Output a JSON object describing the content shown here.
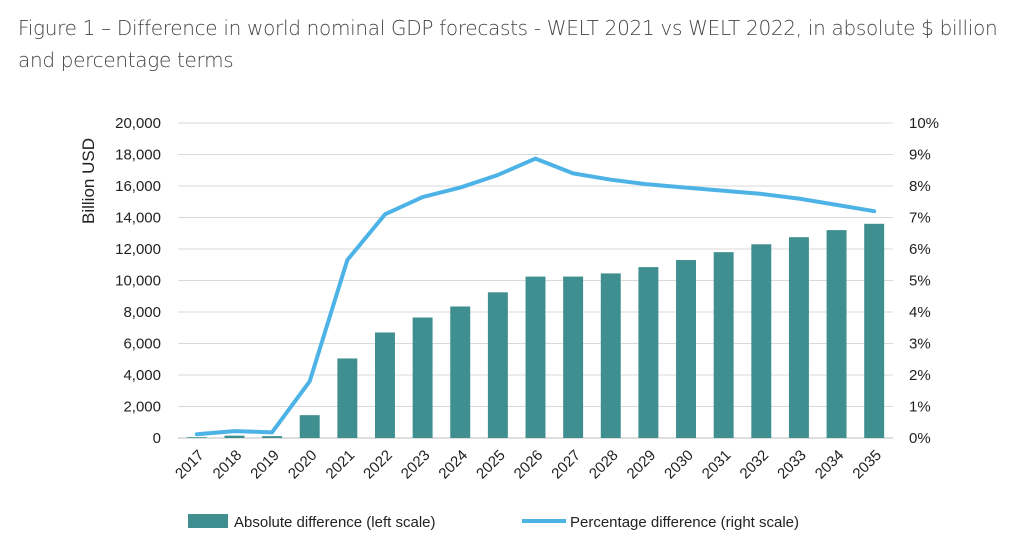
{
  "chart_data": {
    "type": "bar",
    "title": "Figure 1 – Difference in world nominal GDP forecasts -  WELT 2021 vs WELT 2022, in absolute $ billion and percentage terms",
    "ylabel": "Billion USD",
    "categories": [
      "2017",
      "2018",
      "2019",
      "2020",
      "2021",
      "2022",
      "2023",
      "2024",
      "2025",
      "2026",
      "2027",
      "2028",
      "2029",
      "2030",
      "2031",
      "2032",
      "2033",
      "2034",
      "2035"
    ],
    "ylim": [
      0,
      20000
    ],
    "y2lim": [
      0,
      10
    ],
    "y_ticks": [
      "0",
      "2,000",
      "4,000",
      "6,000",
      "8,000",
      "10,000",
      "12,000",
      "14,000",
      "16,000",
      "18,000",
      "20,000"
    ],
    "y2_ticks": [
      "0%",
      "1%",
      "2%",
      "3%",
      "4%",
      "5%",
      "6%",
      "7%",
      "8%",
      "9%",
      "10%"
    ],
    "grid": true,
    "legend_position": "bottom",
    "series": [
      {
        "name": "Absolute difference (left scale)",
        "type": "bar",
        "axis": "left",
        "color": "#3f8f91",
        "values": [
          50,
          150,
          120,
          1450,
          5050,
          6700,
          7650,
          8350,
          9250,
          10250,
          10250,
          10450,
          10850,
          11300,
          11800,
          12300,
          12750,
          13200,
          13600
        ]
      },
      {
        "name": "Percentage difference (right scale)",
        "type": "line",
        "axis": "right",
        "color": "#4db3e6",
        "values": [
          0.12,
          0.22,
          0.18,
          1.8,
          5.65,
          7.1,
          7.65,
          7.95,
          8.35,
          8.87,
          8.4,
          8.2,
          8.05,
          7.95,
          7.85,
          7.75,
          7.6,
          7.4,
          7.2
        ]
      }
    ]
  }
}
